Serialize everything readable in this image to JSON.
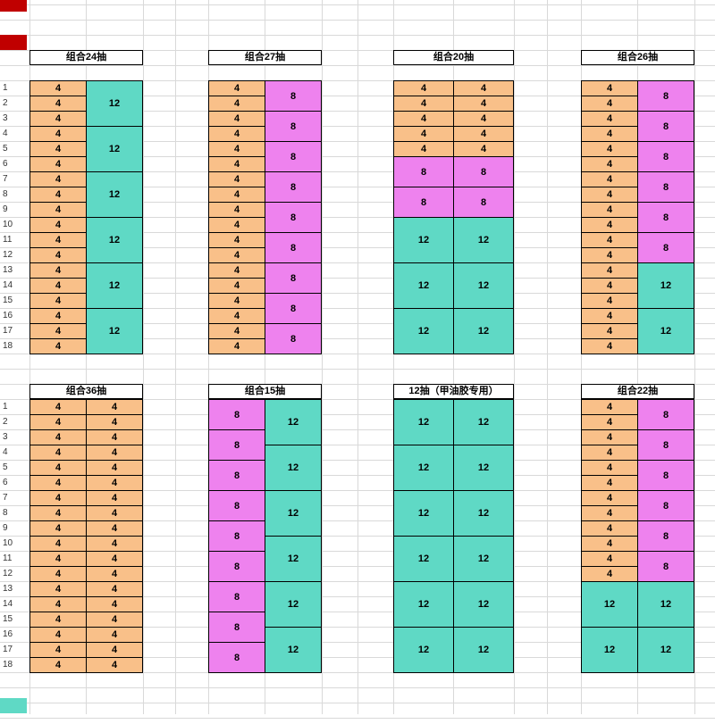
{
  "colors": {
    "orange": "#F9C089",
    "pink": "#EE82EE",
    "teal": "#5FD9C5",
    "red": "#C00000",
    "grid": "#D9D9D9"
  },
  "sheet": {
    "row_labels": [
      "1",
      "2",
      "3",
      "4",
      "5",
      "6",
      "7",
      "8",
      "9",
      "10",
      "11",
      "12",
      "13",
      "14",
      "15",
      "16",
      "17",
      "18"
    ]
  },
  "groups": [
    {
      "title": "组合24抽",
      "columns": [
        [
          {
            "v": "4",
            "c": "orange",
            "span": 1,
            "n": 18
          }
        ],
        [
          {
            "v": "12",
            "c": "teal",
            "span": 3,
            "n": 6
          }
        ]
      ]
    },
    {
      "title": "组合27抽",
      "columns": [
        [
          {
            "v": "4",
            "c": "orange",
            "span": 1,
            "n": 18
          }
        ],
        [
          {
            "v": "8",
            "c": "pink",
            "span": 2,
            "n": 9
          }
        ]
      ]
    },
    {
      "title": "组合20抽",
      "columns": [
        [
          {
            "v": "4",
            "c": "orange",
            "span": 1,
            "n": 5
          },
          {
            "v": "8",
            "c": "pink",
            "span": 2,
            "n": 2
          },
          {
            "v": "12",
            "c": "teal",
            "span": 3,
            "n": 3
          }
        ],
        [
          {
            "v": "4",
            "c": "orange",
            "span": 1,
            "n": 5
          },
          {
            "v": "8",
            "c": "pink",
            "span": 2,
            "n": 2
          },
          {
            "v": "12",
            "c": "teal",
            "span": 3,
            "n": 3
          }
        ]
      ]
    },
    {
      "title": "组合26抽",
      "columns": [
        [
          {
            "v": "4",
            "c": "orange",
            "span": 1,
            "n": 18
          }
        ],
        [
          {
            "v": "8",
            "c": "pink",
            "span": 2,
            "n": 6
          },
          {
            "v": "12",
            "c": "teal",
            "span": 3,
            "n": 2
          }
        ]
      ]
    },
    {
      "title": "组合36抽",
      "columns": [
        [
          {
            "v": "4",
            "c": "orange",
            "span": 1,
            "n": 18
          }
        ],
        [
          {
            "v": "4",
            "c": "orange",
            "span": 1,
            "n": 18
          }
        ]
      ]
    },
    {
      "title": "组合15抽",
      "columns": [
        [
          {
            "v": "8",
            "c": "pink",
            "span": 2,
            "n": 9
          }
        ],
        [
          {
            "v": "12",
            "c": "teal",
            "span": 3,
            "n": 6
          }
        ]
      ]
    },
    {
      "title": "12抽（甲油胶专用）",
      "columns": [
        [
          {
            "v": "12",
            "c": "teal",
            "span": 3,
            "n": 6
          }
        ],
        [
          {
            "v": "12",
            "c": "teal",
            "span": 3,
            "n": 6
          }
        ]
      ]
    },
    {
      "title": "组合22抽",
      "columns": [
        [
          {
            "v": "4",
            "c": "orange",
            "span": 1,
            "n": 12
          },
          {
            "v": "12",
            "c": "teal",
            "span": 3,
            "n": 2
          }
        ],
        [
          {
            "v": "8",
            "c": "pink",
            "span": 2,
            "n": 6
          },
          {
            "v": "12",
            "c": "teal",
            "span": 3,
            "n": 2
          }
        ]
      ]
    }
  ]
}
